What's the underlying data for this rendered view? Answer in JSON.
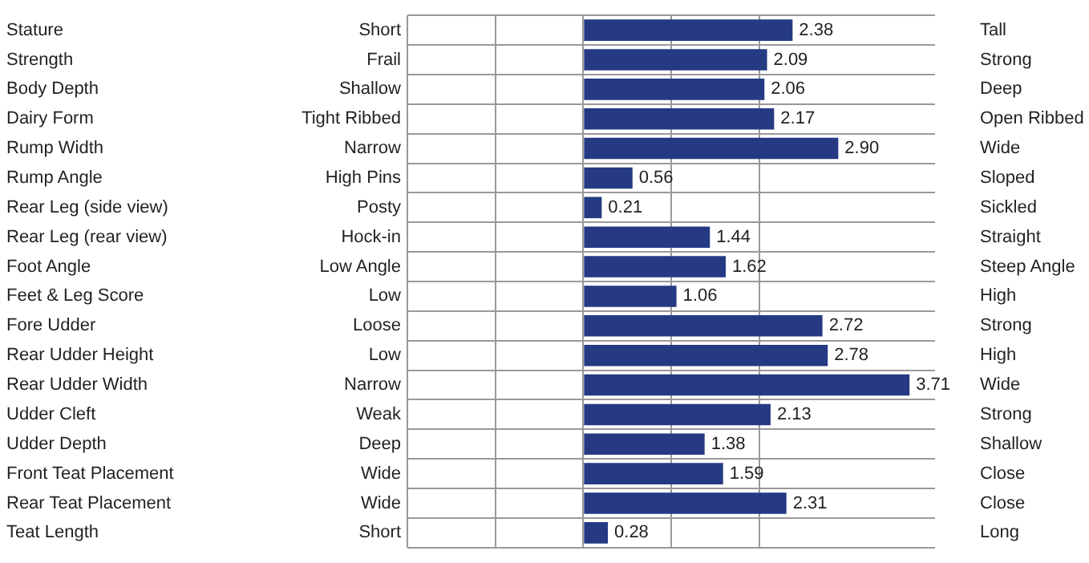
{
  "chart_data": {
    "type": "bar",
    "orientation": "horizontal",
    "categories": [
      "Stature",
      "Strength",
      "Body Depth",
      "Dairy Form",
      "Rump Width",
      "Rump Angle",
      "Rear Leg (side view)",
      "Rear Leg (rear view)",
      "Foot Angle",
      "Feet & Leg Score",
      "Fore Udder",
      "Rear Udder Height",
      "Rear Udder Width",
      "Udder Cleft",
      "Udder Depth",
      "Front Teat Placement",
      "Rear Teat Placement",
      "Teat Length"
    ],
    "values": [
      2.38,
      2.09,
      2.06,
      2.17,
      2.9,
      0.56,
      0.21,
      1.44,
      1.62,
      1.06,
      2.72,
      2.78,
      3.71,
      2.13,
      1.38,
      1.59,
      2.31,
      0.28
    ],
    "color": "#253a83",
    "value_labels": [
      "2.38",
      "2.09",
      "2.06",
      "2.17",
      "2.90",
      "0.56",
      "0.21",
      "1.44",
      "1.62",
      "1.06",
      "2.72",
      "2.78",
      "3.71",
      "2.13",
      "1.38",
      "1.59",
      "2.31",
      "0.28"
    ],
    "xlim": [
      -2,
      4
    ],
    "xticks": [
      {
        "value": -2,
        "label": null
      },
      {
        "value": -1,
        "label": null
      },
      {
        "value": 0,
        "label": null
      },
      {
        "value": 1,
        "label": null
      },
      {
        "value": 2,
        "label": null
      }
    ],
    "tick_labels": "y",
    "grid": true,
    "annotations": [
      "Short",
      "Tall",
      "Frail",
      "Strong",
      "Shallow",
      "Deep",
      "Tight Ribbed",
      "Open Ribbed",
      "Narrow",
      "Wide",
      "High Pins",
      "Sloped",
      "Posty",
      "Sickled",
      "Hock-in",
      "Straight",
      "Low Angle",
      "Steep Angle",
      "Low",
      "High",
      "Loose",
      "Strong",
      "Low",
      "High",
      "Narrow",
      "Wide",
      "Weak",
      "Strong",
      "Deep",
      "Shallow",
      "Wide",
      "Close",
      "Wide",
      "Close",
      "Short",
      "Long"
    ]
  }
}
